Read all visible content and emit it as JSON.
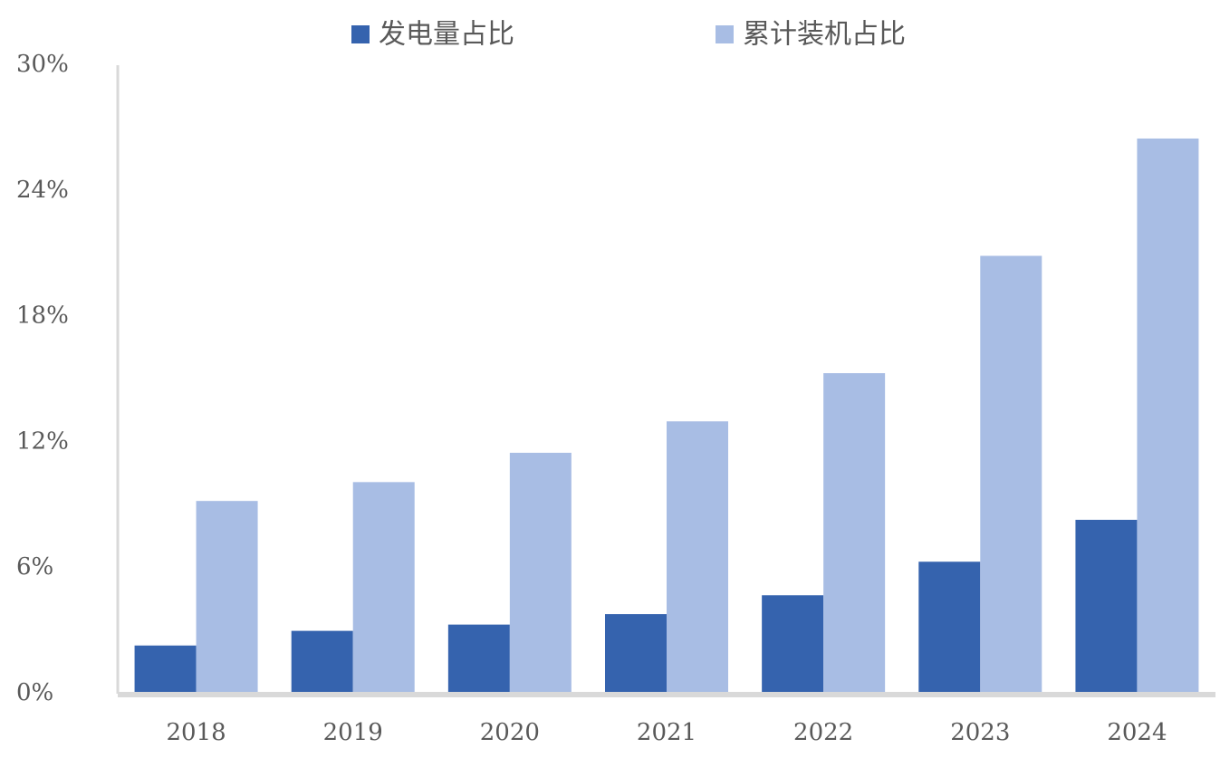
{
  "chart_data": {
    "type": "bar",
    "categories": [
      "2018",
      "2019",
      "2020",
      "2021",
      "2022",
      "2023",
      "2024"
    ],
    "series": [
      {
        "name": "发电量占比",
        "color": "#3563ae",
        "values": [
          2.3,
          3.0,
          3.3,
          3.8,
          4.7,
          6.3,
          8.3
        ]
      },
      {
        "name": "累计装机占比",
        "color": "#a8bde4",
        "values": [
          9.2,
          10.1,
          11.5,
          13.0,
          15.3,
          20.9,
          26.5
        ]
      }
    ],
    "ylim": [
      0,
      30
    ],
    "yticks": [
      0,
      6,
      12,
      18,
      24,
      30
    ],
    "ytick_labels": [
      "0%",
      "6%",
      "12%",
      "18%",
      "24%",
      "30%"
    ],
    "legend": "top-center",
    "grid": false,
    "axis_color": "#d9d9d9"
  }
}
